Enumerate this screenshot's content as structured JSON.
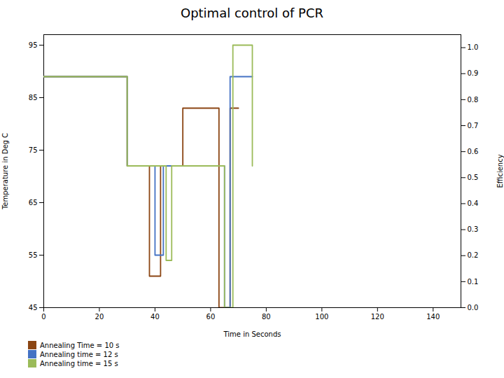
{
  "chart_data": {
    "type": "line",
    "title": "Optimal control of PCR",
    "xlabel": "Time in Seconds",
    "ylabel": "Temperature in Deg C",
    "y2label": "Efficiency",
    "xlim": [
      0,
      150
    ],
    "ylim": [
      45,
      97
    ],
    "y2lim": [
      0,
      1.05
    ],
    "xticks": [
      0,
      20,
      40,
      60,
      80,
      100,
      120,
      140
    ],
    "yticks": [
      45,
      55,
      65,
      75,
      85,
      95
    ],
    "y2ticks": [
      {
        "value": 0,
        "label": "0.0"
      },
      0.1,
      0.2,
      0.3,
      0.4,
      0.5,
      0.6,
      0.7,
      0.8,
      0.9,
      {
        "value": 1,
        "label": "1.0"
      }
    ],
    "grid": false,
    "legend": "bottom",
    "series": [
      {
        "name": "Annealing Time = 10 s",
        "color": "#8B4513",
        "x": [
          0,
          30,
          30,
          38,
          38,
          42,
          42,
          50,
          50,
          63,
          63,
          67,
          67,
          70
        ],
        "values": [
          89,
          89,
          72,
          72,
          51,
          51,
          72,
          72,
          83,
          83,
          45,
          45,
          83,
          83
        ]
      },
      {
        "name": "Annealing time = 12 s",
        "color": "#4472C4",
        "x": [
          0,
          30,
          30,
          40,
          40,
          43,
          43,
          65,
          65,
          67,
          67,
          75
        ],
        "values": [
          89,
          89,
          72,
          72,
          55,
          55,
          72,
          72,
          45,
          45,
          89,
          89
        ]
      },
      {
        "name": "Annealing time = 15 s",
        "color": "#9BBB59",
        "x": [
          0,
          30,
          30,
          44,
          44,
          46,
          46,
          65,
          65,
          68,
          68,
          75,
          75
        ],
        "values": [
          89,
          89,
          72,
          72,
          54,
          54,
          72,
          72,
          45,
          45,
          95,
          95,
          72
        ]
      }
    ]
  }
}
